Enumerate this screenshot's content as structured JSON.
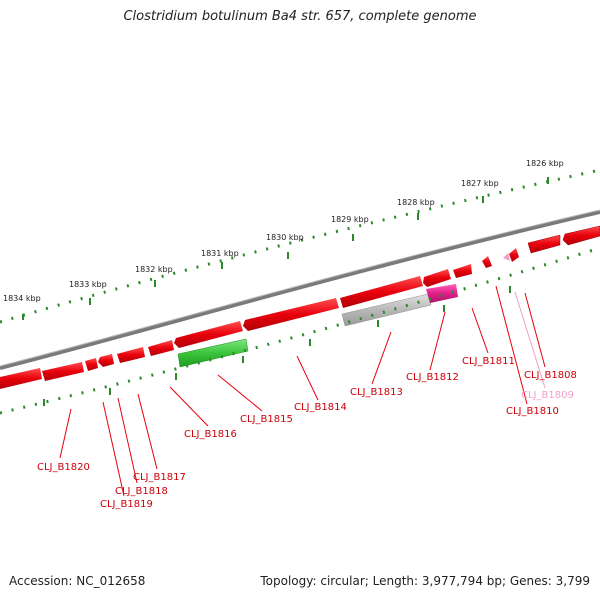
{
  "title": "Clostridium botulinum Ba4 str. 657, complete genome",
  "accession": "Accession: NC_012658",
  "topology": "Topology: circular; Length: 3,977,794 bp; Genes: 3,799",
  "kbp_labels": [
    "1834 kbp",
    "1833 kbp",
    "1832 kbp",
    "1831 kbp",
    "1830 kbp",
    "1829 kbp",
    "1828 kbp",
    "1827 kbp",
    "1826 kbp"
  ],
  "gene_labels": [
    "CLJ_B1808",
    "CLJ_B1809",
    "CLJ_B1810",
    "CLJ_B1811",
    "CLJ_B1812",
    "CLJ_B1813",
    "CLJ_B1814",
    "CLJ_B1815",
    "CLJ_B1816",
    "CLJ_B1817",
    "CLJ_B1818",
    "CLJ_B1819",
    "CLJ_B1820"
  ],
  "colors": {
    "gene_default": "#e8000b",
    "gene_pink": "#f0a0c8",
    "gene_magenta": "#e0208a",
    "gene_green": "#3cc43c",
    "gene_gray": "#b0b0b0",
    "backbone": "#808080",
    "tick": "#2a8a2a"
  }
}
